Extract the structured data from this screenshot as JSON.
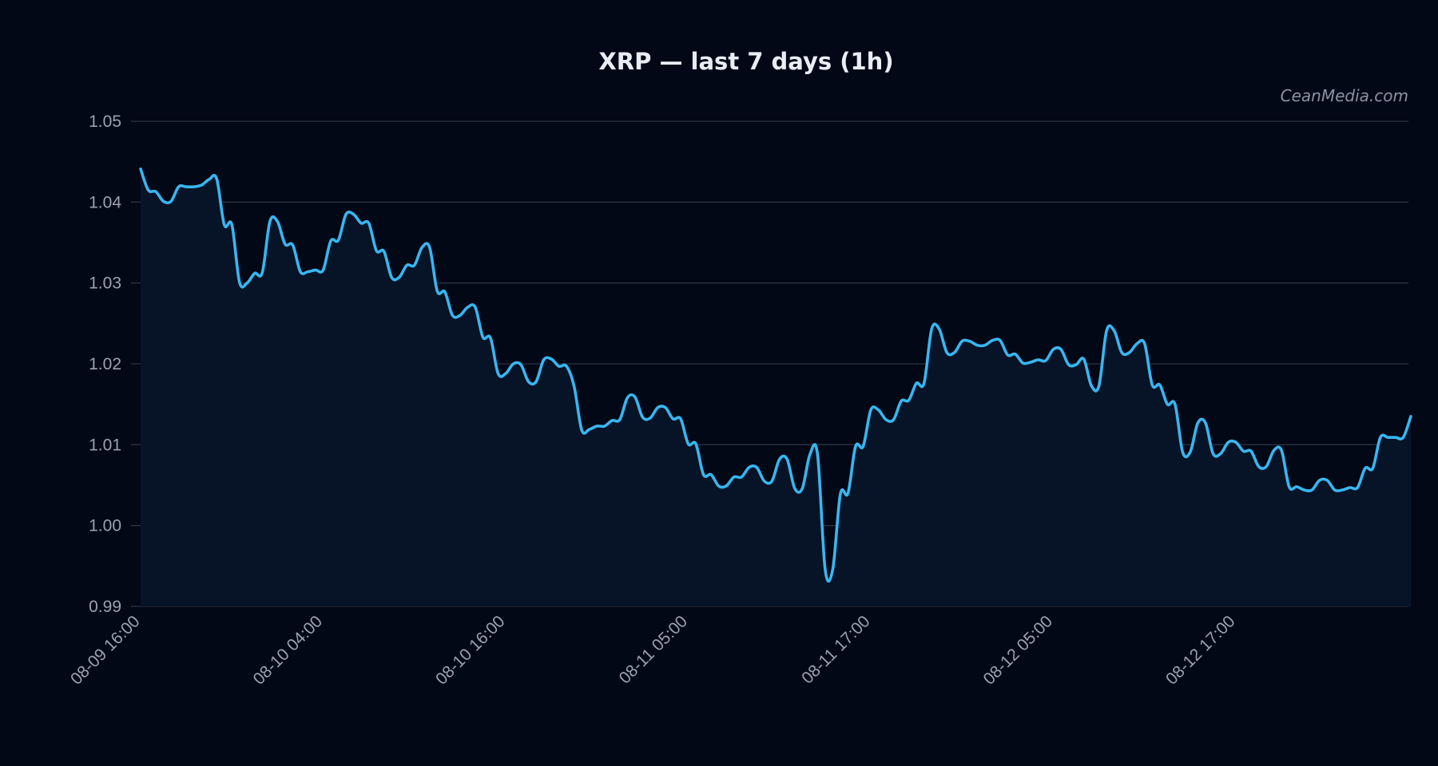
{
  "colors": {
    "background": "#030816",
    "line": "#38b6f0",
    "area": "#071428",
    "grid": "#2a3344",
    "text": "#9aa2b1",
    "title": "#e9edf4"
  },
  "watermark": "CeanMedia.com",
  "chart_data": {
    "type": "area",
    "title": "XRP — last 7 days (1h)",
    "xlabel": "",
    "ylabel": "",
    "ylim": [
      0.99,
      1.05
    ],
    "yticks": [
      "1.05",
      "1.04",
      "1.03",
      "1.02",
      "1.01",
      "1.00",
      "0.99"
    ],
    "xticks": [
      "08-09 16:00",
      "08-10 04:00",
      "08-10 16:00",
      "08-11 05:00",
      "08-11 17:00",
      "08-12 05:00",
      "08-12 17:00"
    ],
    "grid": true,
    "legend": false,
    "series": [
      {
        "values": [
          1.0441,
          1.0415,
          1.0413,
          1.0401,
          1.0401,
          1.0419,
          1.0419,
          1.0419,
          1.0421,
          1.0428,
          1.0429,
          1.0372,
          1.0372,
          1.0301,
          1.03,
          1.0312,
          1.0313,
          1.0376,
          1.0376,
          1.0348,
          1.0347,
          1.0314,
          1.0314,
          1.0316,
          1.0316,
          1.0352,
          1.0353,
          1.0385,
          1.0385,
          1.0374,
          1.0374,
          1.034,
          1.0339,
          1.0307,
          1.0307,
          1.0322,
          1.0322,
          1.0344,
          1.0344,
          1.029,
          1.0289,
          1.026,
          1.026,
          1.027,
          1.027,
          1.0233,
          1.0232,
          1.0188,
          1.0188,
          1.02,
          1.0199,
          1.0178,
          1.0178,
          1.0205,
          1.0206,
          1.0197,
          1.0197,
          1.0172,
          1.0118,
          1.0119,
          1.0123,
          1.0123,
          1.013,
          1.0131,
          1.0158,
          1.0159,
          1.0134,
          1.0133,
          1.0146,
          1.0146,
          1.0132,
          1.0132,
          1.0101,
          1.0101,
          1.0063,
          1.0063,
          1.0049,
          1.0049,
          1.006,
          1.006,
          1.0072,
          1.0072,
          1.0055,
          1.0055,
          1.0082,
          1.0082,
          1.0046,
          1.0046,
          1.0088,
          1.0088,
          0.9946,
          0.9946,
          1.0039,
          1.004,
          1.0098,
          1.0098,
          1.0143,
          1.0143,
          1.0131,
          1.0131,
          1.0154,
          1.0155,
          1.0176,
          1.0176,
          1.0243,
          1.0243,
          1.0214,
          1.0214,
          1.0228,
          1.0228,
          1.0223,
          1.0223,
          1.0229,
          1.0229,
          1.0211,
          1.0212,
          1.0201,
          1.0202,
          1.0205,
          1.0204,
          1.0218,
          1.0218,
          1.0199,
          1.0199,
          1.0206,
          1.0173,
          1.0173,
          1.0241,
          1.0241,
          1.0214,
          1.0214,
          1.0225,
          1.0225,
          1.0174,
          1.0174,
          1.015,
          1.015,
          1.0091,
          1.0091,
          1.0127,
          1.0127,
          1.0089,
          1.0089,
          1.0103,
          1.0103,
          1.0092,
          1.0092,
          1.0073,
          1.0073,
          1.0093,
          1.0093,
          1.0048,
          1.0048,
          1.0044,
          1.0044,
          1.0056,
          1.0056,
          1.0044,
          1.0044,
          1.0047,
          1.0047,
          1.0071,
          1.0071,
          1.0109,
          1.0109,
          1.0109,
          1.0109,
          1.0135
        ]
      }
    ]
  }
}
